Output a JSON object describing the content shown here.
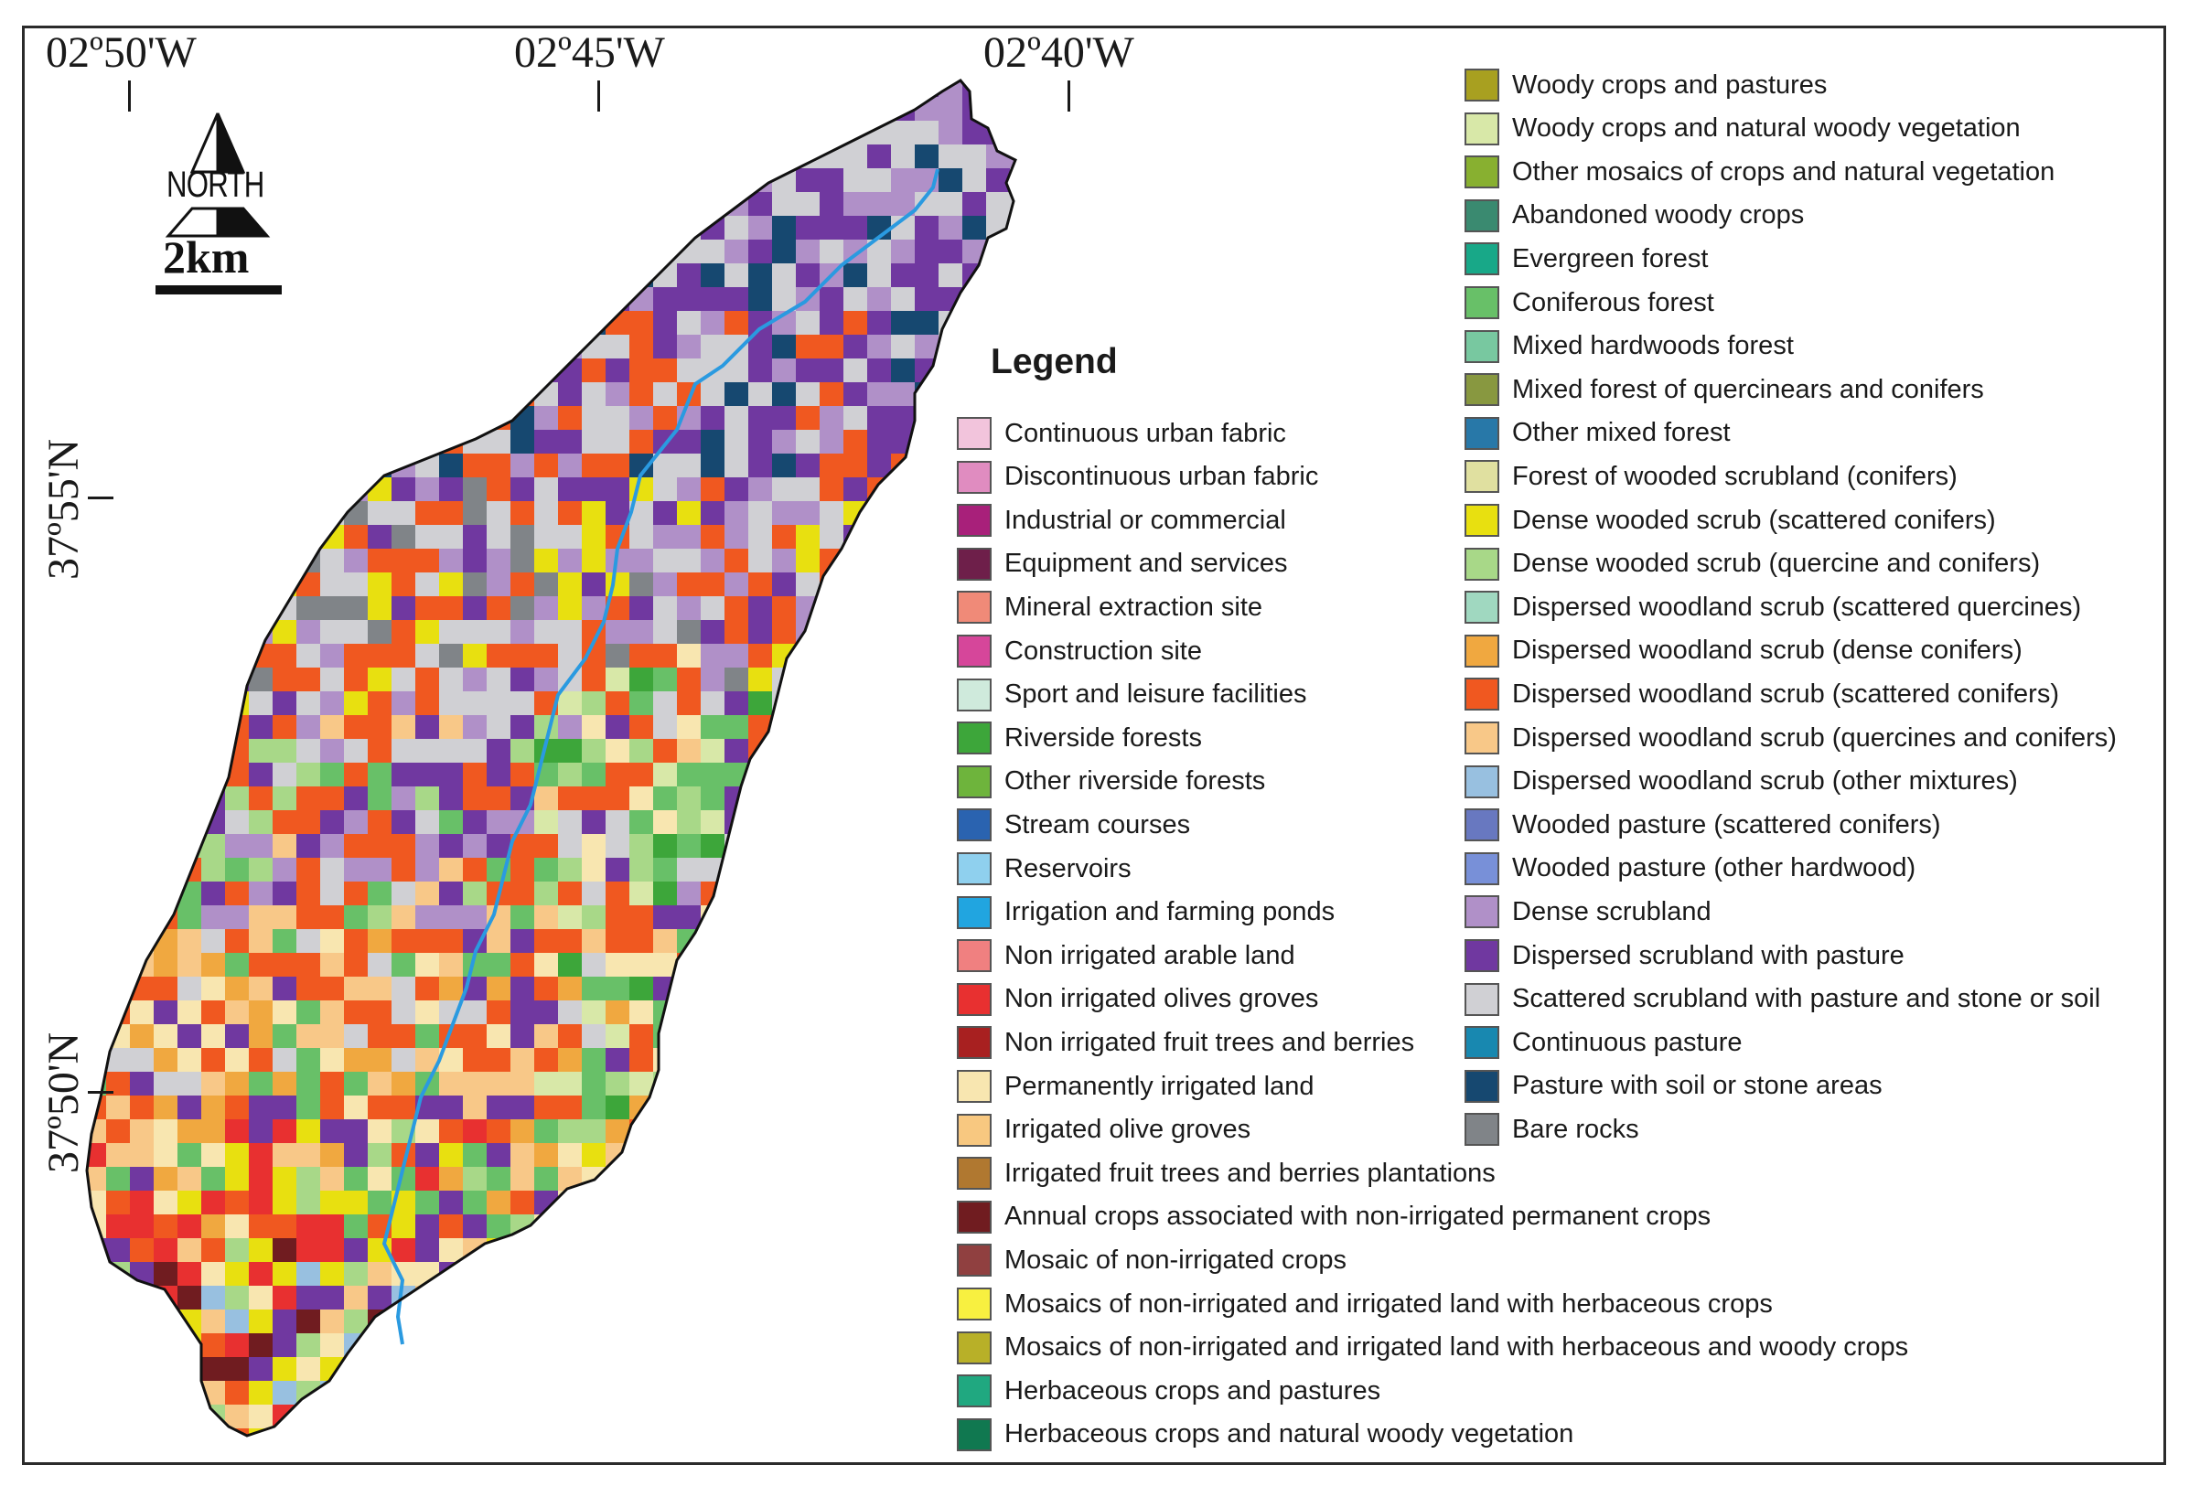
{
  "map": {
    "top_coords": [
      "02º50'W",
      "02º45'W",
      "02º40'W"
    ],
    "left_coords": [
      "37º55'N",
      "37º50'N"
    ],
    "north_label": "NORTH",
    "scale_label": "2km",
    "legend_title": "Legend"
  },
  "legend_left": [
    {
      "label": "Continuous urban fabric",
      "color": "#f2c4dc"
    },
    {
      "label": "Discontinuous urban fabric",
      "color": "#e08cc0"
    },
    {
      "label": "Industrial or commercial",
      "color": "#a8207a"
    },
    {
      "label": "Equipment and services",
      "color": "#6e1f4a"
    },
    {
      "label": "Mineral extraction site",
      "color": "#f08a78"
    },
    {
      "label": "Construction site",
      "color": "#d6469a"
    },
    {
      "label": "Sport and leisure facilities",
      "color": "#cfeadc"
    },
    {
      "label": "Riverside forests",
      "color": "#3da63a"
    },
    {
      "label": "Other riverside forests",
      "color": "#6eb43c"
    },
    {
      "label": "Stream courses",
      "color": "#2a63b0"
    },
    {
      "label": "Reservoirs",
      "color": "#8fd0ee"
    },
    {
      "label": "Irrigation and farming ponds",
      "color": "#21a5e0"
    },
    {
      "label": "Non irrigated arable land",
      "color": "#f08080"
    },
    {
      "label": "Non irrigated olives groves",
      "color": "#e83030"
    },
    {
      "label": "Non irrigated fruit trees and berries",
      "color": "#a82020"
    },
    {
      "label": "Permanently irrigated land",
      "color": "#f8e6b0"
    },
    {
      "label": "Irrigated olive groves",
      "color": "#f8c880"
    },
    {
      "label": "Irrigated fruit trees and berries plantations",
      "color": "#b07830"
    },
    {
      "label": "Annual crops associated with non-irrigated permanent crops",
      "color": "#701c20"
    },
    {
      "label": "Mosaic of non-irrigated crops",
      "color": "#904040"
    },
    {
      "label": "Mosaics of non-irrigated and irrigated land with herbaceous crops",
      "color": "#f8f040"
    },
    {
      "label": "Mosaics of non-irrigated and irrigated land with herbaceous and woody crops",
      "color": "#b8b028"
    },
    {
      "label": "Herbaceous crops and pastures",
      "color": "#20a880"
    },
    {
      "label": "Herbaceous crops and natural woody vegetation",
      "color": "#107850"
    }
  ],
  "legend_right": [
    {
      "label": "Woody crops and pastures",
      "color": "#a8a020"
    },
    {
      "label": "Woody crops and natural woody vegetation",
      "color": "#d8e8a8"
    },
    {
      "label": "Other mosaics of crops and natural vegetation",
      "color": "#88b030"
    },
    {
      "label": "Abandoned woody crops",
      "color": "#3a8a70"
    },
    {
      "label": "Evergreen forest",
      "color": "#18a888"
    },
    {
      "label": "Coniferous forest",
      "color": "#68c068"
    },
    {
      "label": "Mixed hardwoods forest",
      "color": "#78c8a0"
    },
    {
      "label": "Mixed forest of quercinears and conifers",
      "color": "#889840"
    },
    {
      "label": "Other mixed forest",
      "color": "#2878a8"
    },
    {
      "label": "Forest of wooded scrubland (conifers)",
      "color": "#e0e0a0"
    },
    {
      "label": "Dense wooded scrub (scattered conifers)",
      "color": "#e8e010"
    },
    {
      "label": "Dense wooded scrub (quercine and conifers)",
      "color": "#a8d888"
    },
    {
      "label": "Dispersed woodland scrub (scattered quercines)",
      "color": "#a0d8c0"
    },
    {
      "label": "Dispersed woodland scrub (dense conifers)",
      "color": "#f0a840"
    },
    {
      "label": "Dispersed woodland scrub (scattered conifers)",
      "color": "#f05820"
    },
    {
      "label": "Dispersed woodland scrub (quercines and conifers)",
      "color": "#f8c888"
    },
    {
      "label": "Dispersed woodland scrub (other mixtures)",
      "color": "#98c0e0"
    },
    {
      "label": "Wooded pasture (scattered conifers)",
      "color": "#6878c0"
    },
    {
      "label": "Wooded pasture (other hardwood)",
      "color": "#7890d8"
    },
    {
      "label": "Dense scrubland",
      "color": "#b090c8"
    },
    {
      "label": "Dispersed scrubland with pasture",
      "color": "#7038a0"
    },
    {
      "label": "Scattered scrubland with pasture and stone or soil",
      "color": "#d0d0d4"
    },
    {
      "label": "Continuous pasture",
      "color": "#1888b0"
    },
    {
      "label": "Pasture with soil or stone areas",
      "color": "#164870"
    },
    {
      "label": "Bare rocks",
      "color": "#808488"
    }
  ]
}
